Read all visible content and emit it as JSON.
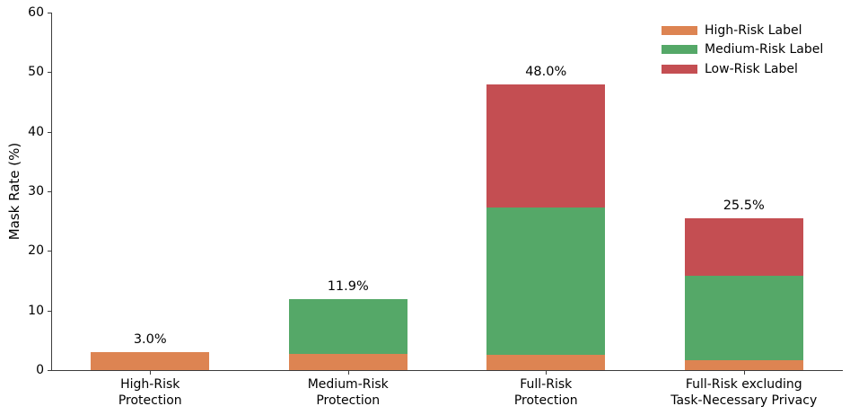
{
  "figure": {
    "background": "#ffffff",
    "spine_color": "#3d3d3d",
    "text_color": "#000000"
  },
  "chart_data": {
    "type": "bar",
    "stacked": true,
    "title": "",
    "xlabel": "",
    "ylabel": "Mask Rate (%)",
    "ylim": [
      0,
      60
    ],
    "yticks": [
      0,
      10,
      20,
      30,
      40,
      50,
      60
    ],
    "grid": false,
    "legend_position": "upper right",
    "legend_frame": false,
    "bar_width_fraction": 0.6,
    "categories": [
      [
        "High-Risk",
        "Protection"
      ],
      [
        "Medium-Risk",
        "Protection"
      ],
      [
        "Full-Risk",
        "Protection"
      ],
      [
        "Full-Risk excluding",
        "Task-Necessary Privacy"
      ]
    ],
    "series": [
      {
        "name": "High-Risk Label",
        "color": "#dd8452",
        "values": [
          3.0,
          2.7,
          2.5,
          1.7
        ]
      },
      {
        "name": "Medium-Risk Label",
        "color": "#55a868",
        "values": [
          0.0,
          9.2,
          24.8,
          14.1
        ]
      },
      {
        "name": "Low-Risk Label",
        "color": "#c44e52",
        "values": [
          0.0,
          0.0,
          20.7,
          9.7
        ]
      }
    ],
    "totals": [
      3.0,
      11.9,
      48.0,
      25.5
    ],
    "total_labels": [
      "3.0%",
      "11.9%",
      "48.0%",
      "25.5%"
    ]
  }
}
